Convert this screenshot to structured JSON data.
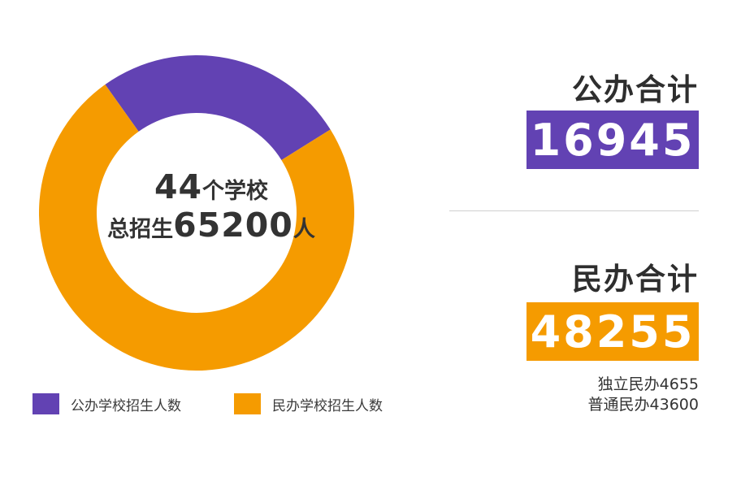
{
  "colors": {
    "public": "#6242b3",
    "private": "#f59b00"
  },
  "center": {
    "count": "44",
    "count_unit": "个学校",
    "prefix": "总招生",
    "total": "65200",
    "total_unit": "人"
  },
  "legend": {
    "public": "公办学校招生人数",
    "private": "民办学校招生人数"
  },
  "public_panel": {
    "title": "公办合计",
    "value": "16945"
  },
  "private_panel": {
    "title": "民办合计",
    "value": "48255",
    "breakdown": [
      "独立民办4655",
      "普通民办43600"
    ]
  },
  "chart_data": {
    "type": "pie",
    "categories": [
      "公办学校招生人数",
      "民办学校招生人数"
    ],
    "values": [
      16945,
      48255
    ],
    "total": 65200
  }
}
